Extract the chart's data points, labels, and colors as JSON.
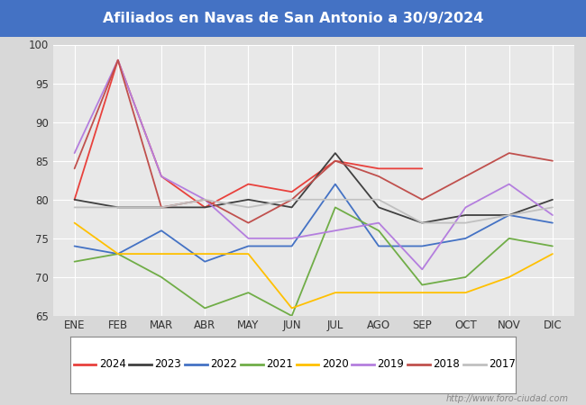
{
  "title": "Afiliados en Navas de San Antonio a 30/9/2024",
  "title_color": "#ffffff",
  "title_bg_color": "#4472c4",
  "months": [
    "ENE",
    "FEB",
    "MAR",
    "ABR",
    "MAY",
    "JUN",
    "JUL",
    "AGO",
    "SEP",
    "OCT",
    "NOV",
    "DIC"
  ],
  "ylim": [
    65,
    100
  ],
  "yticks": [
    65,
    70,
    75,
    80,
    85,
    90,
    95,
    100
  ],
  "series": {
    "2024": {
      "color": "#e8413c",
      "data": [
        80,
        98,
        83,
        79,
        82,
        81,
        85,
        84,
        84,
        null,
        null,
        null
      ]
    },
    "2023": {
      "color": "#404040",
      "data": [
        80,
        79,
        79,
        79,
        80,
        79,
        86,
        79,
        77,
        78,
        78,
        80
      ]
    },
    "2022": {
      "color": "#4472c4",
      "data": [
        74,
        73,
        76,
        72,
        74,
        74,
        82,
        74,
        74,
        75,
        78,
        77
      ]
    },
    "2021": {
      "color": "#70ad47",
      "data": [
        72,
        73,
        70,
        66,
        68,
        65,
        79,
        76,
        69,
        70,
        75,
        74
      ]
    },
    "2020": {
      "color": "#ffc000",
      "data": [
        77,
        73,
        73,
        73,
        73,
        66,
        68,
        68,
        68,
        68,
        70,
        73
      ]
    },
    "2019": {
      "color": "#b47ede",
      "data": [
        86,
        98,
        83,
        80,
        75,
        75,
        76,
        77,
        71,
        79,
        82,
        78
      ]
    },
    "2018": {
      "color": "#c0504d",
      "data": [
        84,
        98,
        79,
        80,
        77,
        80,
        85,
        83,
        80,
        83,
        86,
        85
      ]
    },
    "2017": {
      "color": "#c0c0c0",
      "data": [
        79,
        79,
        79,
        80,
        79,
        80,
        80,
        80,
        77,
        77,
        78,
        79
      ]
    }
  },
  "legend_order": [
    "2024",
    "2023",
    "2022",
    "2021",
    "2020",
    "2019",
    "2018",
    "2017"
  ],
  "watermark": "http://www.foro-ciudad.com",
  "outer_bg_color": "#d8d8d8",
  "plot_bg_color": "#e8e8e8",
  "grid_color": "#ffffff"
}
